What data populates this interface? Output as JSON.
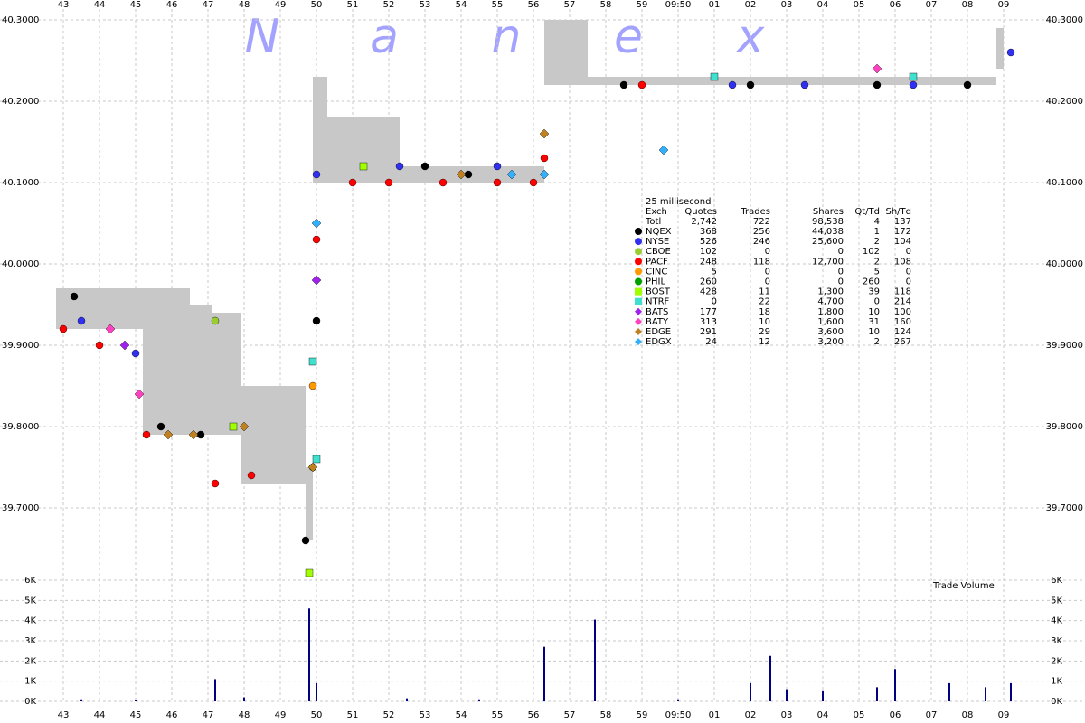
{
  "chart_data": {
    "type": "trade-scatter",
    "watermark": [
      "N",
      "a",
      "n",
      "e",
      "x"
    ],
    "xlim": [
      42.8,
      70
    ],
    "xticks": [
      43,
      44,
      45,
      46,
      47,
      48,
      49,
      50,
      51,
      52,
      53,
      54,
      55,
      56,
      57,
      58,
      59,
      {
        "value": 60,
        "label": "09:50"
      },
      {
        "value": 61,
        "label": "01"
      },
      {
        "value": 62,
        "label": "02"
      },
      {
        "value": 63,
        "label": "03"
      },
      {
        "value": 64,
        "label": "04"
      },
      {
        "value": 65,
        "label": "05"
      },
      {
        "value": 66,
        "label": "06"
      },
      {
        "value": 67,
        "label": "07"
      },
      {
        "value": 68,
        "label": "08"
      },
      {
        "value": 69,
        "label": "09"
      }
    ],
    "ylim": [
      39.62,
      40.31
    ],
    "yticks": [
      {
        "value": 40.3,
        "label": "40.3000"
      },
      {
        "value": 40.2,
        "label": "40.2000"
      },
      {
        "value": 40.1,
        "label": "40.1000"
      },
      {
        "value": 40.0,
        "label": "40.0000"
      },
      {
        "value": 39.9,
        "label": "39.9000"
      },
      {
        "value": 39.8,
        "label": "39.8000"
      },
      {
        "value": 39.7,
        "label": "39.7000"
      }
    ],
    "grid": true,
    "nbbo": {
      "color": "#c8c8c8",
      "x": [
        42.8,
        45.2,
        46.5,
        47.1,
        47.9,
        49.7,
        49.9,
        50.3,
        52.3,
        56.3,
        57.5,
        68.8
      ],
      "bid": [
        39.92,
        39.79,
        39.79,
        39.79,
        39.73,
        39.66,
        40.1,
        40.1,
        40.1,
        40.22,
        40.22,
        40.24
      ],
      "ask": [
        39.97,
        39.97,
        39.95,
        39.94,
        39.85,
        39.75,
        40.23,
        40.18,
        40.12,
        40.3,
        40.23,
        40.29
      ]
    },
    "legend": {
      "title": "25 millisecond",
      "columns": [
        "Exch",
        "Quotes",
        "Trades",
        "Shares",
        "Qt/Td",
        "Sh/Td"
      ],
      "total": [
        "Totl",
        "2,742",
        "722",
        "98,538",
        "4",
        "137"
      ]
    },
    "series": [
      {
        "name": "NQEX",
        "color": "#000000",
        "marker": "circle",
        "stats": [
          "368",
          "256",
          "44,038",
          "1",
          "172"
        ],
        "x": [
          43.3,
          45.7,
          46.8,
          49.7,
          50.0,
          53.0,
          54.2,
          58.5,
          62.0,
          65.5,
          68.0
        ],
        "values": [
          39.96,
          39.8,
          39.79,
          39.66,
          39.93,
          40.12,
          40.11,
          40.22,
          40.22,
          40.22,
          40.22
        ]
      },
      {
        "name": "NYSE",
        "color": "#3030f0",
        "marker": "circle",
        "stats": [
          "526",
          "246",
          "25,600",
          "2",
          "104"
        ],
        "x": [
          43.5,
          45.0,
          50.0,
          52.3,
          55.0,
          61.5,
          63.5,
          66.5,
          69.2
        ],
        "values": [
          39.93,
          39.89,
          40.11,
          40.12,
          40.12,
          40.22,
          40.22,
          40.22,
          40.26
        ]
      },
      {
        "name": "CBOE",
        "color": "#9acd32",
        "marker": "circle",
        "stats": [
          "102",
          "0",
          "0",
          "102",
          "0"
        ],
        "x": [
          47.2
        ],
        "values": [
          39.93
        ]
      },
      {
        "name": "PACF",
        "color": "#ff0000",
        "marker": "circle",
        "stats": [
          "248",
          "118",
          "12,700",
          "2",
          "108"
        ],
        "x": [
          43.0,
          44.0,
          45.3,
          47.2,
          48.2,
          50.0,
          51.0,
          52.0,
          53.5,
          55.0,
          56.0,
          56.3,
          59.0
        ],
        "values": [
          39.92,
          39.9,
          39.79,
          39.73,
          39.74,
          40.03,
          40.1,
          40.1,
          40.1,
          40.1,
          40.1,
          40.13,
          40.22
        ]
      },
      {
        "name": "CINC",
        "color": "#ff9900",
        "marker": "circle",
        "stats": [
          "5",
          "0",
          "0",
          "5",
          "0"
        ],
        "x": [
          49.9
        ],
        "values": [
          39.85
        ]
      },
      {
        "name": "PHIL",
        "color": "#00a000",
        "marker": "circle",
        "stats": [
          "260",
          "0",
          "0",
          "260",
          "0"
        ],
        "x": [
          49.9
        ],
        "values": [
          39.75
        ]
      },
      {
        "name": "BOST",
        "color": "#a0ff00",
        "marker": "square",
        "stats": [
          "428",
          "11",
          "1,300",
          "39",
          "118"
        ],
        "x": [
          47.7,
          49.8,
          51.3
        ],
        "values": [
          39.8,
          39.62,
          40.12
        ]
      },
      {
        "name": "NTRF",
        "color": "#40e0d0",
        "marker": "square",
        "stats": [
          "0",
          "22",
          "4,700",
          "0",
          "214"
        ],
        "x": [
          49.9,
          50.0,
          61.0,
          66.5
        ],
        "values": [
          39.88,
          39.76,
          40.23,
          40.23
        ]
      },
      {
        "name": "BATS",
        "color": "#a020f0",
        "marker": "diamond",
        "stats": [
          "177",
          "18",
          "1,800",
          "10",
          "100"
        ],
        "x": [
          44.7,
          50.0
        ],
        "values": [
          39.9,
          39.98
        ]
      },
      {
        "name": "BATY",
        "color": "#ff40c0",
        "marker": "diamond",
        "stats": [
          "313",
          "10",
          "1,600",
          "31",
          "160"
        ],
        "x": [
          44.3,
          45.1,
          65.5
        ],
        "values": [
          39.92,
          39.84,
          40.24
        ]
      },
      {
        "name": "EDGE",
        "color": "#c08020",
        "marker": "diamond",
        "stats": [
          "291",
          "29",
          "3,600",
          "10",
          "124"
        ],
        "x": [
          45.9,
          46.6,
          48.0,
          49.9,
          54.0,
          56.3
        ],
        "values": [
          39.79,
          39.79,
          39.8,
          39.75,
          40.11,
          40.16
        ]
      },
      {
        "name": "EDGX",
        "color": "#30b0ff",
        "marker": "diamond",
        "stats": [
          "24",
          "12",
          "3,200",
          "2",
          "267"
        ],
        "x": [
          50.0,
          55.4,
          56.3,
          59.6
        ],
        "values": [
          40.05,
          40.11,
          40.11,
          40.14
        ]
      }
    ],
    "volume": {
      "title": "Trade Volume",
      "color": "#000080",
      "ylim": [
        0,
        6000
      ],
      "yticks": [
        {
          "value": 6000,
          "label": "6K"
        },
        {
          "value": 5000,
          "label": "5K"
        },
        {
          "value": 4000,
          "label": "4K"
        },
        {
          "value": 3000,
          "label": "3K"
        },
        {
          "value": 2000,
          "label": "2K"
        },
        {
          "value": 1000,
          "label": "1K"
        },
        {
          "value": 0,
          "label": "0K"
        }
      ],
      "x": [
        43.5,
        45.0,
        47.2,
        48.0,
        49.8,
        50.0,
        52.5,
        54.5,
        56.3,
        57.7,
        60.0,
        62.0,
        62.55,
        63.0,
        64.0,
        65.5,
        66.0,
        67.5,
        68.5,
        69.2
      ],
      "values": [
        100,
        80,
        1100,
        200,
        4600,
        900,
        150,
        100,
        2700,
        4050,
        100,
        900,
        2250,
        600,
        500,
        700,
        1600,
        900,
        700,
        900
      ]
    }
  }
}
